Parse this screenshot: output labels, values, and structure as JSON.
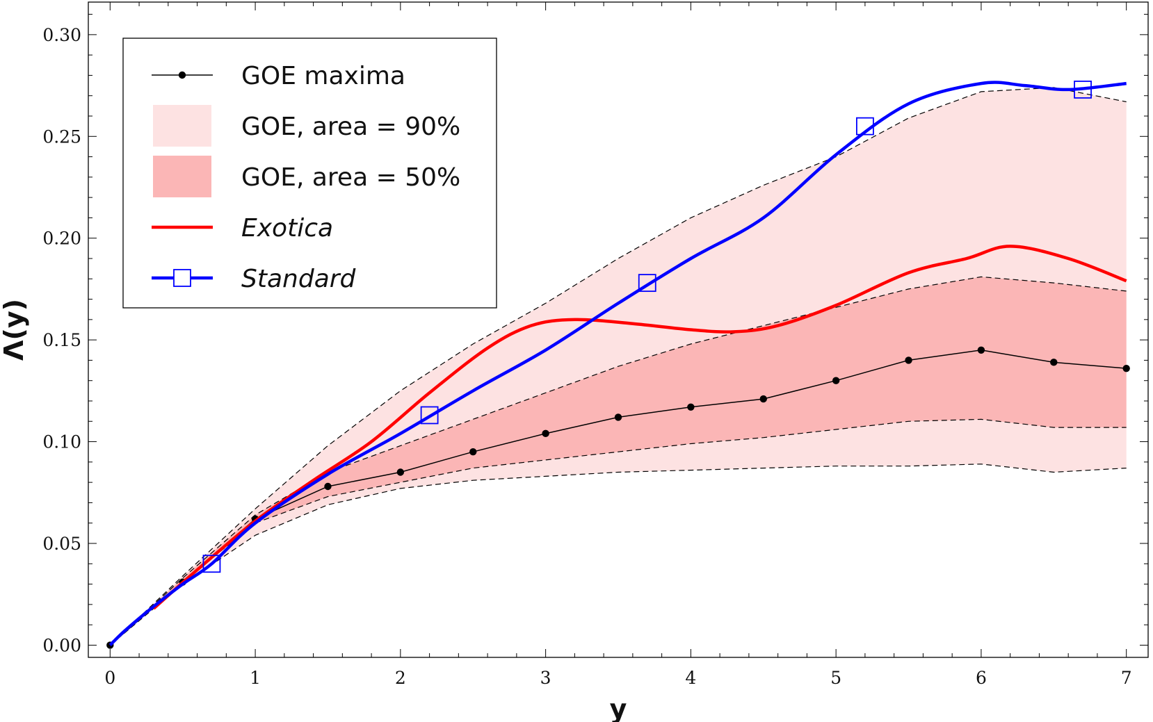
{
  "chart_data": {
    "type": "line",
    "title": "",
    "xlabel": "y",
    "ylabel": "Λ(y)",
    "xlim": [
      -0.15,
      7.15
    ],
    "ylim": [
      -0.006,
      0.316
    ],
    "xticks": [
      0,
      1,
      2,
      3,
      4,
      5,
      6,
      7
    ],
    "xtick_labels": [
      "0",
      "1",
      "2",
      "3",
      "4",
      "5",
      "6",
      "7"
    ],
    "yticks": [
      0.0,
      0.05,
      0.1,
      0.15,
      0.2,
      0.25,
      0.3
    ],
    "ytick_labels": [
      "0.00",
      "0.05",
      "0.10",
      "0.15",
      "0.20",
      "0.25",
      "0.30"
    ],
    "legend_position": "top-left",
    "legend": [
      {
        "label": "GOE maxima",
        "kind": "line-dot",
        "color": "#000000"
      },
      {
        "label": "GOE, area = 90%",
        "kind": "band",
        "color": "#fde2e2"
      },
      {
        "label": "GOE, area = 50%",
        "kind": "band",
        "color": "#fbb6b6"
      },
      {
        "label": "Exotica",
        "kind": "line",
        "color": "#ff0000"
      },
      {
        "label": "Standard",
        "kind": "line-square",
        "color": "#0000ff"
      }
    ],
    "bands": {
      "x": [
        0,
        0.5,
        1,
        1.5,
        2,
        2.5,
        3,
        3.5,
        4,
        4.5,
        5,
        5.5,
        6,
        6.5,
        7
      ],
      "upper90": [
        0,
        0.034,
        0.067,
        0.098,
        0.125,
        0.148,
        0.168,
        0.19,
        0.21,
        0.226,
        0.24,
        0.259,
        0.272,
        0.274,
        0.267
      ],
      "upper50": [
        0,
        0.033,
        0.064,
        0.085,
        0.098,
        0.111,
        0.124,
        0.137,
        0.148,
        0.157,
        0.166,
        0.175,
        0.181,
        0.178,
        0.174
      ],
      "lower50": [
        0,
        0.031,
        0.06,
        0.073,
        0.08,
        0.087,
        0.091,
        0.095,
        0.099,
        0.102,
        0.106,
        0.11,
        0.111,
        0.107,
        0.107
      ],
      "lower90": [
        0,
        0.03,
        0.054,
        0.069,
        0.077,
        0.081,
        0.083,
        0.085,
        0.086,
        0.087,
        0.088,
        0.088,
        0.089,
        0.085,
        0.087
      ]
    },
    "series": [
      {
        "name": "GOE maxima",
        "color": "#000000",
        "x": [
          0,
          0.5,
          1,
          1.5,
          2,
          2.5,
          3,
          3.5,
          4,
          4.5,
          5,
          5.5,
          6,
          6.5,
          7
        ],
        "y": [
          0,
          0.031,
          0.062,
          0.078,
          0.085,
          0.095,
          0.104,
          0.112,
          0.117,
          0.121,
          0.13,
          0.14,
          0.145,
          0.139,
          0.136
        ]
      },
      {
        "name": "Exotica",
        "color": "#ff0000",
        "x": [
          0.3,
          0.6,
          1,
          1.4,
          1.8,
          2.2,
          2.6,
          2.9,
          3.2,
          3.6,
          4,
          4.3,
          4.6,
          5,
          5.5,
          5.9,
          6.2,
          6.6,
          7
        ],
        "y": [
          0.018,
          0.037,
          0.061,
          0.081,
          0.1,
          0.124,
          0.146,
          0.157,
          0.16,
          0.158,
          0.155,
          0.154,
          0.157,
          0.167,
          0.183,
          0.19,
          0.196,
          0.19,
          0.179
        ]
      },
      {
        "name": "Standard",
        "color": "#0000ff",
        "x": [
          0,
          0.1,
          0.3,
          0.5,
          0.7,
          1,
          1.5,
          2,
          2.5,
          3,
          3.5,
          4,
          4.5,
          5,
          5.5,
          6,
          6.3,
          6.6,
          7
        ],
        "y": [
          0,
          0.007,
          0.019,
          0.03,
          0.04,
          0.06,
          0.084,
          0.104,
          0.125,
          0.145,
          0.168,
          0.19,
          0.21,
          0.241,
          0.266,
          0.276,
          0.275,
          0.273,
          0.276
        ]
      }
    ],
    "standard_markers": {
      "x": [
        0.7,
        2.2,
        3.7,
        5.2,
        6.7
      ],
      "y": [
        0.04,
        0.113,
        0.178,
        0.255,
        0.273
      ]
    }
  }
}
